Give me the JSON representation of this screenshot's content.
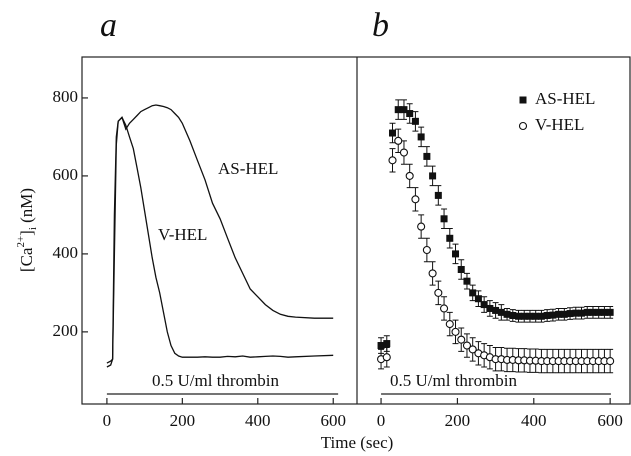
{
  "shared": {
    "x_label": "Time (sec)",
    "y_label": [
      "[Ca",
      "2+",
      "]",
      "i",
      " (nM)"
    ]
  },
  "thrombin_label": "0.5 U/ml thrombin",
  "chart_data": [
    {
      "type": "line",
      "title": "a",
      "x": [
        0,
        10,
        15,
        20,
        25,
        30,
        40,
        50,
        60,
        70,
        80,
        90,
        100,
        110,
        120,
        130,
        140,
        150,
        160,
        170,
        180,
        190,
        200,
        220,
        240,
        260,
        280,
        300,
        320,
        340,
        360,
        380,
        400,
        420,
        440,
        460,
        480,
        500,
        550,
        600
      ],
      "series": [
        {
          "name": "AS-HEL",
          "color": "#111111",
          "values": [
            120,
            125,
            130,
            400,
            680,
            740,
            750,
            720,
            735,
            745,
            755,
            765,
            770,
            775,
            780,
            782,
            780,
            778,
            775,
            770,
            760,
            750,
            735,
            690,
            640,
            590,
            530,
            490,
            440,
            390,
            350,
            310,
            290,
            270,
            255,
            245,
            240,
            238,
            235,
            235
          ]
        },
        {
          "name": "V-HEL",
          "color": "#111111",
          "values": [
            110,
            115,
            130,
            500,
            700,
            740,
            750,
            730,
            700,
            670,
            620,
            570,
            510,
            450,
            390,
            340,
            300,
            250,
            200,
            165,
            145,
            138,
            135,
            135,
            135,
            136,
            135,
            135,
            137,
            136,
            138,
            135,
            136,
            137,
            138,
            137,
            135,
            136,
            138,
            140
          ]
        }
      ],
      "xlim": [
        -66,
        663
      ],
      "ylim": [
        15,
        905
      ],
      "xticks": [
        0,
        200,
        400,
        600
      ],
      "yticks": [
        200,
        400,
        600,
        800
      ]
    },
    {
      "type": "scatter",
      "title": "b",
      "x": [
        0,
        15,
        30,
        45,
        60,
        75,
        90,
        105,
        120,
        135,
        150,
        165,
        180,
        195,
        210,
        225,
        240,
        255,
        270,
        285,
        300,
        315,
        330,
        345,
        360,
        375,
        390,
        405,
        420,
        435,
        450,
        465,
        480,
        495,
        510,
        525,
        540,
        555,
        570,
        585,
        600
      ],
      "series": [
        {
          "name": "AS-HEL",
          "color": "#111111",
          "marker": "square",
          "values": [
            165,
            170,
            710,
            770,
            770,
            760,
            740,
            700,
            650,
            600,
            550,
            490,
            440,
            400,
            360,
            330,
            300,
            285,
            270,
            260,
            255,
            250,
            245,
            242,
            240,
            240,
            240,
            240,
            240,
            242,
            243,
            245,
            245,
            247,
            248,
            248,
            250,
            250,
            250,
            250,
            250
          ],
          "errors": [
            20,
            20,
            25,
            25,
            25,
            25,
            25,
            25,
            25,
            25,
            25,
            25,
            25,
            25,
            25,
            20,
            20,
            20,
            20,
            20,
            20,
            20,
            15,
            15,
            15,
            15,
            15,
            15,
            15,
            15,
            15,
            15,
            15,
            15,
            15,
            15,
            15,
            15,
            15,
            15,
            15
          ]
        },
        {
          "name": "V-HEL",
          "color": "#111111",
          "marker": "circle",
          "values": [
            130,
            135,
            640,
            690,
            660,
            600,
            540,
            470,
            410,
            350,
            300,
            260,
            220,
            200,
            180,
            165,
            155,
            145,
            140,
            135,
            130,
            130,
            128,
            128,
            127,
            127,
            126,
            126,
            125,
            125,
            125,
            125,
            125,
            125,
            125,
            125,
            125,
            125,
            125,
            125,
            125
          ],
          "errors": [
            25,
            25,
            30,
            30,
            30,
            30,
            30,
            30,
            30,
            30,
            30,
            30,
            30,
            30,
            30,
            30,
            30,
            30,
            30,
            30,
            30,
            30,
            30,
            30,
            30,
            30,
            30,
            30,
            30,
            30,
            30,
            30,
            30,
            30,
            30,
            30,
            30,
            30,
            30,
            30,
            30
          ]
        }
      ],
      "xlim": [
        -63,
        652
      ],
      "ylim": [
        15,
        905
      ],
      "xticks": [
        0,
        200,
        400,
        600
      ]
    }
  ]
}
